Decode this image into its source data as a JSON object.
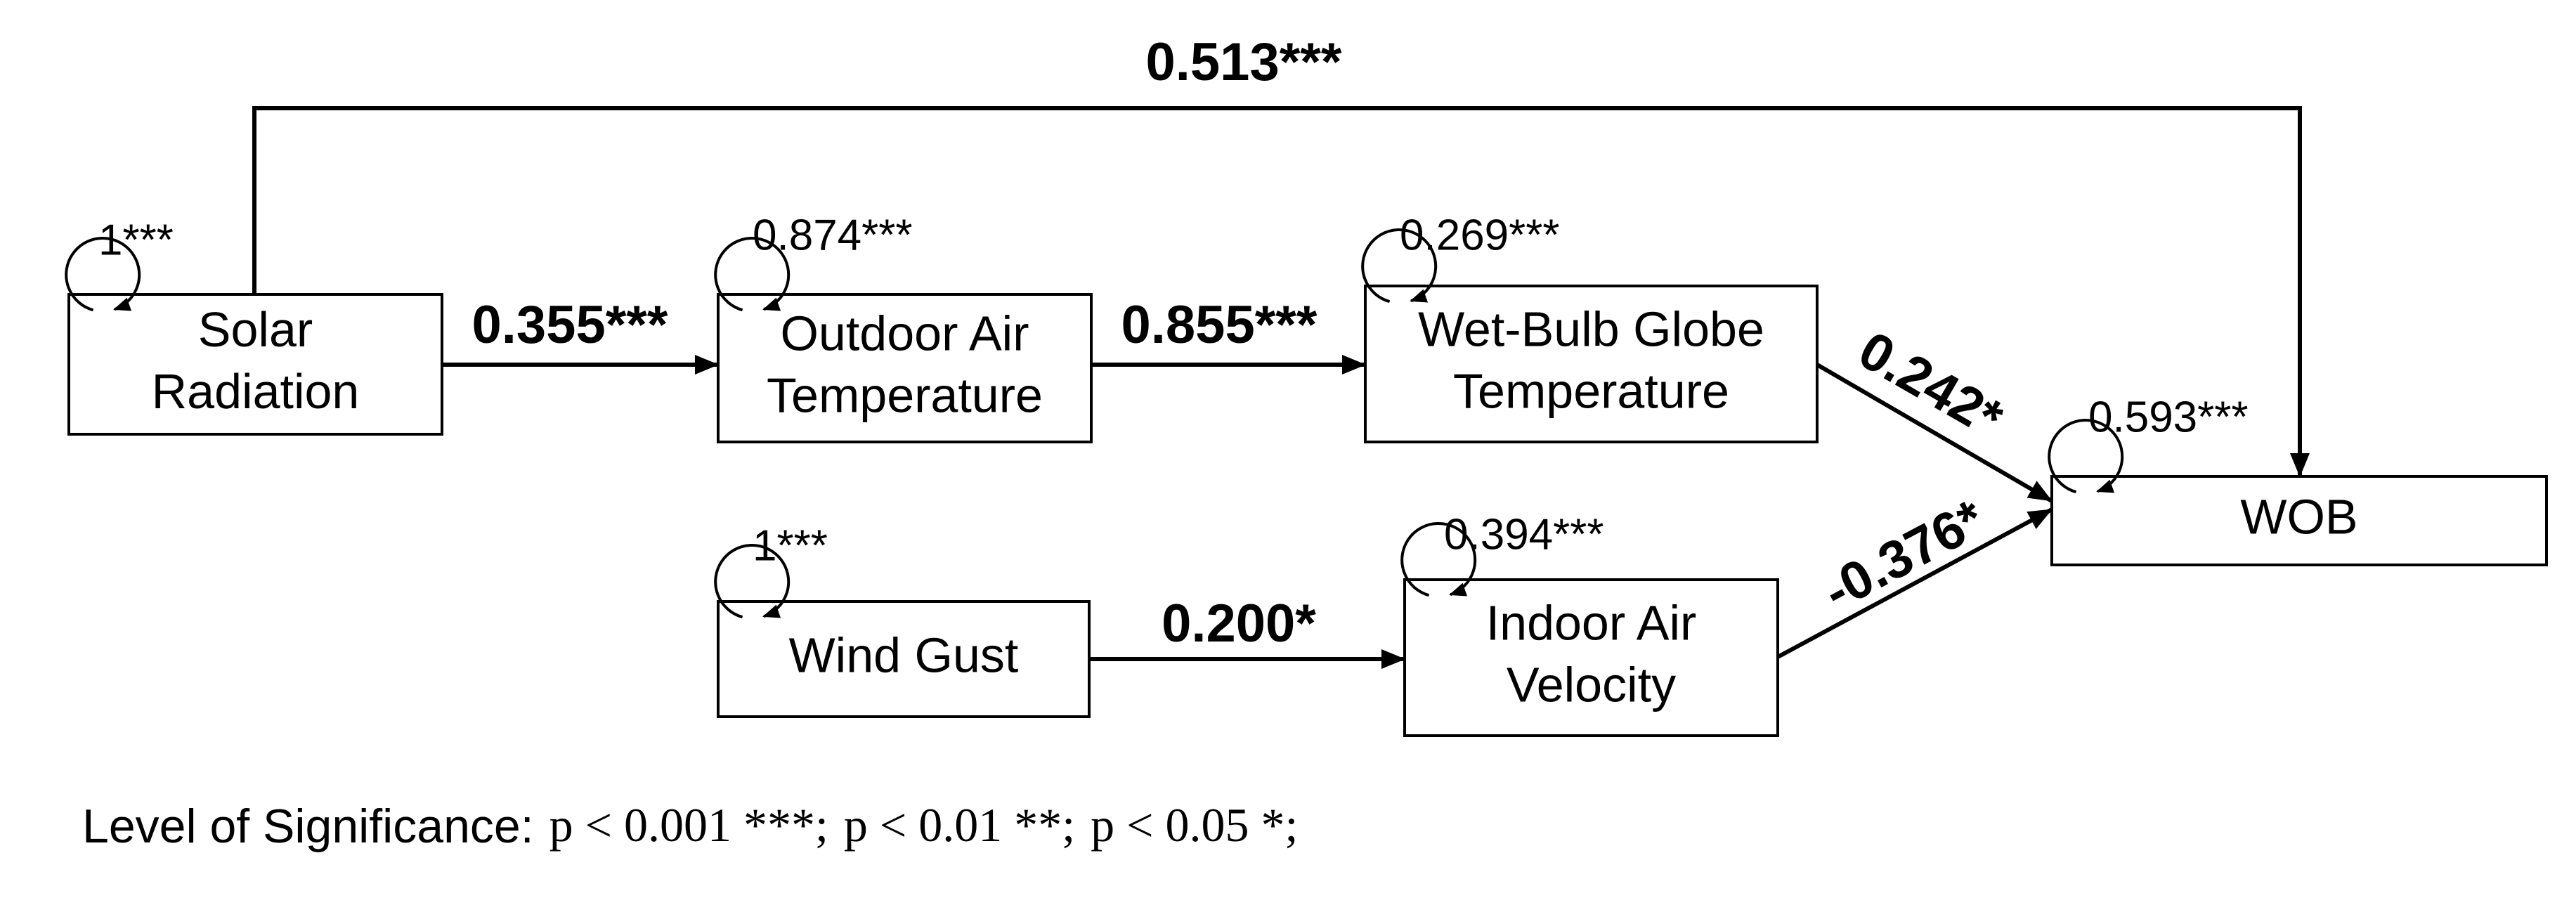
{
  "nodes": [
    {
      "lines": [
        "Solar",
        "Radiation"
      ],
      "variance": "1***"
    },
    {
      "lines": [
        "Outdoor Air",
        "Temperature"
      ],
      "variance": "0.874***"
    },
    {
      "lines": [
        "Wet-Bulb Globe",
        "Temperature"
      ],
      "variance": "0.269***"
    },
    {
      "lines": [
        "WOB"
      ],
      "variance": "0.593***"
    },
    {
      "lines": [
        "Wind Gust"
      ],
      "variance": "1***"
    },
    {
      "lines": [
        "Indoor Air",
        "Velocity"
      ],
      "variance": "0.394***"
    }
  ],
  "edges": [
    {
      "from": "Solar Radiation",
      "to": "WOB",
      "label": "0.513***"
    },
    {
      "from": "Solar Radiation",
      "to": "Outdoor Air Temperature",
      "label": "0.355***"
    },
    {
      "from": "Outdoor Air Temperature",
      "to": "Wet-Bulb Globe Temperature",
      "label": "0.855***"
    },
    {
      "from": "Wet-Bulb Globe Temperature",
      "to": "WOB",
      "label": "0.242*"
    },
    {
      "from": "Indoor Air Velocity",
      "to": "WOB",
      "label": "-0.376*"
    },
    {
      "from": "Wind Gust",
      "to": "Indoor Air Velocity",
      "label": "0.200*"
    }
  ],
  "legend": {
    "title": "Level of Significance:",
    "items": [
      "p < 0.001 ***;",
      "p < 0.01 **;",
      "p < 0.05 *;"
    ]
  }
}
